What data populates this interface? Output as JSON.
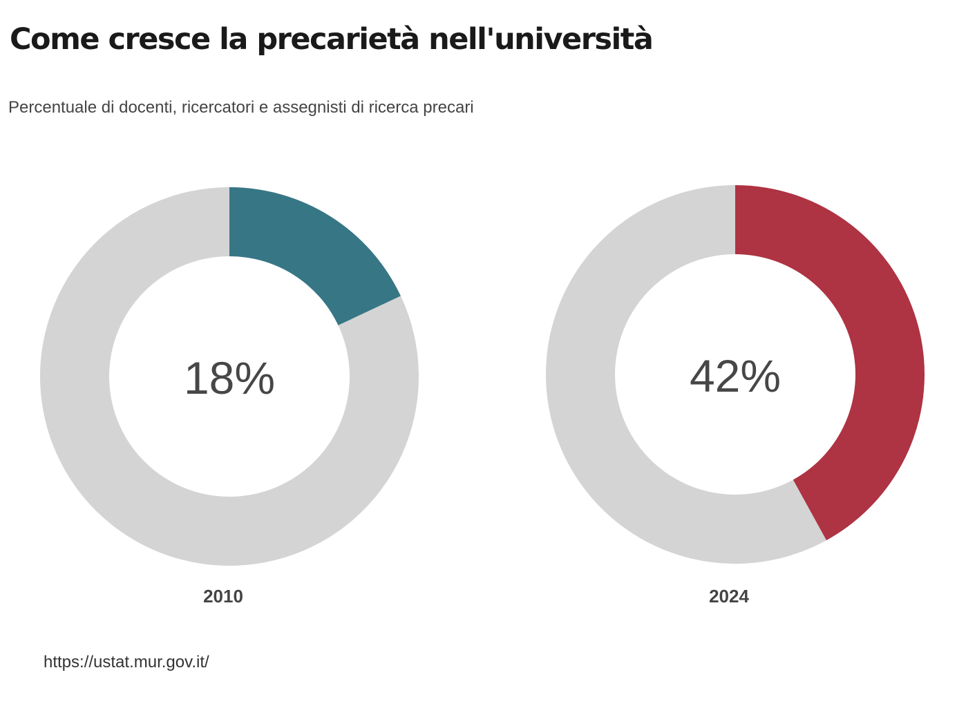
{
  "chart_data": {
    "type": "pie",
    "title": "Come cresce la precarietà nell'università",
    "subtitle": "Percentuale di docenti, ricercatori e assegnisti di ricerca precari",
    "source": "https://ustat.mur.gov.it/",
    "charts": [
      {
        "label": "2010",
        "value": 18,
        "value_label": "18%",
        "color": "#377685",
        "rest_color": "#d4d4d4"
      },
      {
        "label": "2024",
        "value": 42,
        "value_label": "42%",
        "color": "#ae3343",
        "rest_color": "#d4d4d4"
      }
    ]
  }
}
